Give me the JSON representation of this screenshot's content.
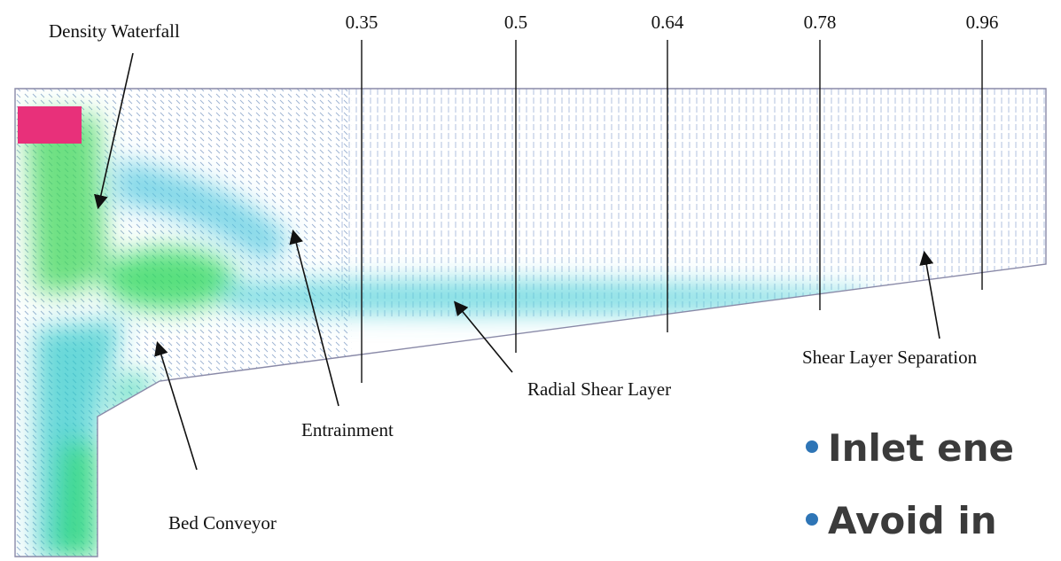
{
  "figure": {
    "callouts": {
      "density_waterfall": "Density Waterfall",
      "entrainment": "Entrainment",
      "bed_conveyor": "Bed Conveyor",
      "radial_shear_layer": "Radial Shear Layer",
      "shear_layer_separation": "Shear Layer Separation"
    },
    "stations": [
      "0.35",
      "0.5",
      "0.64",
      "0.78",
      "0.96"
    ]
  },
  "bullets": [
    "Inlet ene",
    "Avoid in"
  ]
}
